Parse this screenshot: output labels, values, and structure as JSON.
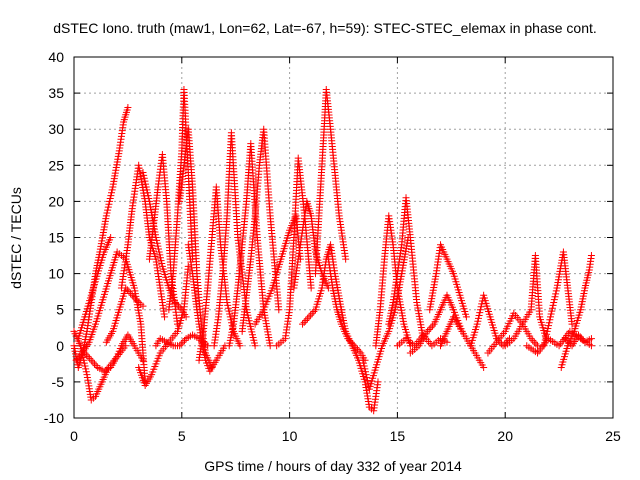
{
  "chart_data": {
    "type": "scatter",
    "title": "dSTEC Iono. truth (maw1, Lon=62, Lat=-67, h=59): STEC-STEC_elemax in phase cont.",
    "xlabel": "GPS time / hours of day 332 of year 2014",
    "ylabel": "dSTEC  / TECUs",
    "xlim": [
      0,
      25
    ],
    "ylim": [
      -10,
      40
    ],
    "x_ticks": [
      0,
      5,
      10,
      15,
      20,
      25
    ],
    "y_ticks": [
      -10,
      -5,
      0,
      5,
      10,
      15,
      20,
      25,
      30,
      35,
      40
    ],
    "x_tick_labels": [
      "0",
      "5",
      "10",
      "15",
      "20",
      "25"
    ],
    "y_tick_labels": [
      "-10",
      "-5",
      "0",
      "5",
      "10",
      "15",
      "20",
      "25",
      "30",
      "35",
      "40"
    ],
    "grid": true,
    "marker": "+",
    "color": "#ff0000",
    "series": [
      {
        "x": [
          0.0,
          0.2,
          0.4,
          0.6,
          0.8,
          1.0,
          1.2,
          1.5,
          1.8,
          2.1,
          2.3,
          2.5
        ],
        "y": [
          0.0,
          -3.0,
          -1.0,
          2.0,
          6.0,
          10.0,
          13.0,
          18.0,
          22.0,
          27.0,
          31.0,
          33.0
        ]
      },
      {
        "x": [
          0.0,
          0.3,
          0.6,
          0.8,
          1.0,
          1.3,
          1.6,
          2.0,
          2.4
        ],
        "y": [
          2.0,
          0.0,
          -4.0,
          -7.5,
          -7.0,
          -5.0,
          -3.0,
          -1.5,
          0.0
        ]
      },
      {
        "x": [
          0.1,
          0.4,
          0.7,
          1.0,
          1.3,
          1.6,
          2.0,
          2.4,
          2.8,
          3.1,
          3.3
        ],
        "y": [
          -2.0,
          -1.0,
          0.5,
          3.0,
          6.0,
          9.0,
          13.0,
          12.0,
          8.0,
          3.0,
          -5.0
        ]
      },
      {
        "x": [
          0.2,
          0.5,
          0.8,
          1.1,
          1.4,
          1.7
        ],
        "y": [
          1.0,
          4.0,
          7.0,
          10.0,
          13.0,
          15.0
        ]
      },
      {
        "x": [
          0.5,
          0.8,
          1.1,
          1.4,
          1.7,
          2.0,
          2.2,
          2.5,
          2.8,
          3.2
        ],
        "y": [
          -1.0,
          -2.0,
          -3.0,
          -3.5,
          -3.0,
          -1.5,
          0.0,
          1.5,
          0.0,
          -2.0
        ]
      },
      {
        "x": [
          1.5,
          1.8,
          2.1,
          2.4,
          2.7,
          3.0,
          3.2
        ],
        "y": [
          0.5,
          2.0,
          5.0,
          8.0,
          7.0,
          6.0,
          5.5
        ]
      },
      {
        "x": [
          2.2,
          2.5,
          2.7,
          3.0,
          3.3,
          3.5,
          3.8,
          4.0,
          4.2
        ],
        "y": [
          8.0,
          14.0,
          19.0,
          25.0,
          20.0,
          15.0,
          12.0,
          8.0,
          4.0
        ]
      },
      {
        "x": [
          3.0,
          3.3,
          3.6,
          4.0,
          4.4,
          4.8,
          5.1,
          5.3
        ],
        "y": [
          -3.0,
          -5.5,
          -4.0,
          -1.0,
          0.5,
          2.0,
          5.0,
          11.0
        ]
      },
      {
        "x": [
          3.2,
          3.5,
          3.8,
          4.1,
          4.4,
          4.7,
          5.0,
          5.2
        ],
        "y": [
          24.0,
          20.0,
          15.0,
          11.0,
          8.0,
          6.0,
          5.0,
          4.0
        ]
      },
      {
        "x": [
          3.5,
          3.7,
          3.9,
          4.1,
          4.3,
          4.5,
          4.8
        ],
        "y": [
          12.0,
          17.0,
          22.0,
          26.5,
          20.0,
          10.0,
          3.0
        ]
      },
      {
        "x": [
          3.8,
          4.0,
          4.3,
          4.6,
          4.9,
          5.2,
          5.5,
          5.8,
          6.2
        ],
        "y": [
          0.0,
          1.0,
          0.5,
          0.0,
          0.0,
          1.0,
          1.5,
          1.0,
          0.0
        ]
      },
      {
        "x": [
          4.4,
          4.6,
          4.8,
          5.0,
          5.1,
          5.3,
          5.5
        ],
        "y": [
          5.0,
          10.0,
          18.0,
          27.0,
          35.5,
          24.0,
          12.0
        ]
      },
      {
        "x": [
          4.9,
          5.1,
          5.3,
          5.5,
          5.7,
          5.9,
          6.1,
          6.4
        ],
        "y": [
          20.0,
          25.0,
          30.0,
          22.0,
          10.0,
          3.0,
          -1.0,
          -3.0
        ]
      },
      {
        "x": [
          5.3,
          5.5,
          5.7,
          5.9,
          6.1,
          6.3,
          6.6,
          7.0
        ],
        "y": [
          14.0,
          10.0,
          5.0,
          1.0,
          -2.0,
          -3.5,
          -2.0,
          0.0
        ]
      },
      {
        "x": [
          5.8,
          6.0,
          6.2,
          6.4,
          6.6,
          6.8,
          7.1,
          7.4,
          7.7
        ],
        "y": [
          -2.0,
          2.0,
          8.0,
          15.0,
          22.0,
          14.0,
          6.0,
          2.0,
          0.0
        ]
      },
      {
        "x": [
          6.5,
          6.7,
          6.9,
          7.1,
          7.3,
          7.6,
          8.0,
          8.4
        ],
        "y": [
          0.0,
          4.0,
          10.0,
          18.0,
          29.5,
          15.0,
          5.0,
          0.0
        ]
      },
      {
        "x": [
          7.2,
          7.4,
          7.6,
          7.8,
          8.0,
          8.2,
          8.5,
          8.8,
          9.1
        ],
        "y": [
          0.0,
          3.0,
          8.0,
          14.0,
          20.0,
          28.0,
          15.0,
          5.0,
          0.0
        ]
      },
      {
        "x": [
          7.8,
          8.0,
          8.2,
          8.4,
          8.6,
          8.8,
          9.1,
          9.5
        ],
        "y": [
          2.0,
          7.0,
          12.0,
          18.0,
          25.0,
          30.0,
          18.0,
          5.0
        ]
      },
      {
        "x": [
          8.4,
          8.8,
          9.2,
          9.6,
          10.0,
          10.3,
          10.5
        ],
        "y": [
          3.0,
          5.0,
          8.0,
          12.0,
          16.0,
          18.0,
          12.0
        ]
      },
      {
        "x": [
          9.4,
          9.6,
          9.8,
          10.0,
          10.2,
          10.4,
          10.7,
          11.0
        ],
        "y": [
          0.0,
          0.5,
          1.0,
          5.0,
          15.0,
          26.0,
          18.0,
          8.0
        ]
      },
      {
        "x": [
          10.2,
          10.4,
          10.6,
          10.8,
          11.0,
          11.2,
          11.5,
          11.8
        ],
        "y": [
          8.0,
          12.0,
          16.0,
          20.0,
          18.0,
          13.0,
          10.0,
          8.0
        ]
      },
      {
        "x": [
          10.6,
          10.9,
          11.2,
          11.5,
          11.7,
          11.9,
          12.1,
          12.4
        ],
        "y": [
          3.0,
          4.0,
          5.0,
          8.0,
          12.0,
          14.0,
          10.0,
          5.0
        ]
      },
      {
        "x": [
          11.2,
          11.4,
          11.6,
          11.7,
          11.9,
          12.1,
          12.3,
          12.6
        ],
        "y": [
          10.0,
          20.0,
          30.0,
          35.5,
          30.0,
          24.0,
          18.0,
          12.0
        ]
      },
      {
        "x": [
          11.8,
          12.0,
          12.2,
          12.4,
          12.7,
          13.0,
          13.3,
          13.5
        ],
        "y": [
          12.0,
          8.0,
          5.0,
          3.0,
          1.0,
          0.0,
          -1.0,
          -2.0
        ]
      },
      {
        "x": [
          12.4,
          12.6,
          12.9,
          13.2,
          13.5,
          13.7,
          13.9,
          14.1
        ],
        "y": [
          5.0,
          2.0,
          0.0,
          -2.0,
          -5.0,
          -8.5,
          -9.0,
          -5.0
        ]
      },
      {
        "x": [
          13.4,
          13.7,
          14.0,
          14.3,
          14.6,
          14.9,
          15.2,
          15.5
        ],
        "y": [
          -2.0,
          -6.0,
          -3.0,
          0.0,
          2.0,
          5.0,
          10.0,
          15.0
        ]
      },
      {
        "x": [
          14.0,
          14.2,
          14.4,
          14.6,
          14.8,
          15.0,
          15.3,
          15.6
        ],
        "y": [
          0.0,
          5.0,
          12.0,
          18.0,
          14.0,
          8.0,
          3.0,
          0.0
        ]
      },
      {
        "x": [
          14.6,
          14.8,
          15.0,
          15.2,
          15.4,
          15.6,
          15.9,
          16.2
        ],
        "y": [
          3.0,
          6.0,
          10.0,
          14.0,
          20.5,
          15.0,
          6.0,
          1.0
        ]
      },
      {
        "x": [
          15.0,
          15.4,
          15.8,
          16.2,
          16.6,
          17.0,
          17.3
        ],
        "y": [
          0.0,
          1.0,
          0.0,
          1.5,
          0.0,
          1.0,
          0.5
        ]
      },
      {
        "x": [
          15.6,
          16.0,
          16.4,
          16.7,
          17.0,
          17.3,
          17.6,
          18.0
        ],
        "y": [
          -1.0,
          0.0,
          2.0,
          3.0,
          5.0,
          7.0,
          5.0,
          2.0
        ]
      },
      {
        "x": [
          16.5,
          16.8,
          17.0,
          17.3,
          17.6,
          17.9,
          18.2
        ],
        "y": [
          5.0,
          10.0,
          14.0,
          12.0,
          10.0,
          7.0,
          4.0
        ]
      },
      {
        "x": [
          17.0,
          17.3,
          17.6,
          18.0,
          18.4,
          18.8,
          19.0
        ],
        "y": [
          0.0,
          2.0,
          4.0,
          2.0,
          0.0,
          -2.0,
          -3.0
        ]
      },
      {
        "x": [
          18.4,
          18.7,
          19.0,
          19.3,
          19.6,
          19.9,
          20.2
        ],
        "y": [
          0.0,
          3.0,
          7.0,
          4.0,
          1.0,
          0.0,
          1.0
        ]
      },
      {
        "x": [
          19.2,
          19.6,
          20.0,
          20.4,
          20.8,
          21.2,
          21.5
        ],
        "y": [
          -1.0,
          0.5,
          2.0,
          4.5,
          3.0,
          1.0,
          0.0
        ]
      },
      {
        "x": [
          20.0,
          20.4,
          20.8,
          21.2,
          21.4,
          21.6,
          21.9
        ],
        "y": [
          0.0,
          1.0,
          3.0,
          5.0,
          12.5,
          4.0,
          1.0
        ]
      },
      {
        "x": [
          21.0,
          21.5,
          22.0,
          22.5,
          23.0,
          23.5,
          24.0
        ],
        "y": [
          0.0,
          -1.0,
          1.0,
          0.0,
          2.0,
          1.0,
          0.0
        ]
      },
      {
        "x": [
          21.8,
          22.1,
          22.4,
          22.7,
          22.9,
          23.1
        ],
        "y": [
          0.0,
          4.0,
          8.0,
          13.0,
          8.0,
          3.0
        ]
      },
      {
        "x": [
          22.6,
          22.9,
          23.2,
          23.5,
          23.7,
          23.9,
          24.0
        ],
        "y": [
          -3.0,
          0.0,
          2.0,
          5.0,
          8.0,
          10.5,
          12.5
        ]
      },
      {
        "x": [
          22.8,
          23.1,
          23.4,
          23.7,
          24.0
        ],
        "y": [
          1.0,
          0.0,
          1.5,
          0.5,
          1.0
        ]
      }
    ]
  }
}
